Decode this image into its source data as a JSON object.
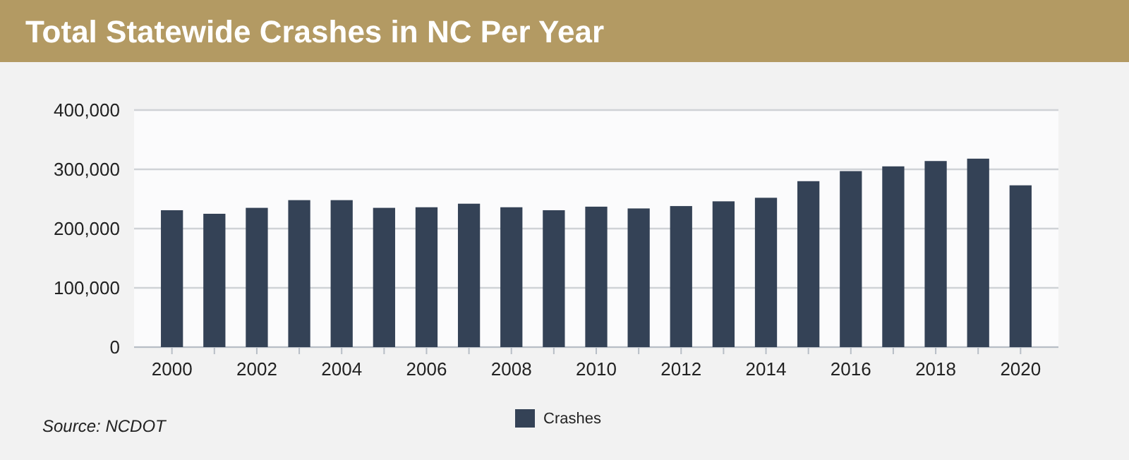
{
  "chart_data": {
    "type": "bar",
    "title": "Total Statewide Crashes in NC Per Year",
    "categories": [
      "2000",
      null,
      "2002",
      null,
      "2004",
      null,
      "2006",
      null,
      "2008",
      null,
      "2010",
      null,
      "2012",
      null,
      "2014",
      null,
      "2016",
      null,
      "2018",
      null,
      "2020"
    ],
    "series": [
      {
        "name": "Crashes",
        "color": "#344256",
        "values": [
          231000,
          225000,
          235000,
          248000,
          248000,
          235000,
          236000,
          242000,
          236000,
          231000,
          237000,
          234000,
          238000,
          246000,
          252000,
          280000,
          297000,
          305000,
          314000,
          318000,
          273000
        ]
      }
    ],
    "ylim": [
      0,
      400000
    ],
    "yticks": [
      {
        "value": 0,
        "label": "0"
      },
      {
        "value": 100000,
        "label": "100,000"
      },
      {
        "value": 200000,
        "label": "200,000"
      },
      {
        "value": 300000,
        "label": "300,000"
      },
      {
        "value": 400000,
        "label": "400,000"
      }
    ],
    "grid": "y",
    "legend": "bottom",
    "annotations": [
      "Source: NCDOT"
    ]
  }
}
